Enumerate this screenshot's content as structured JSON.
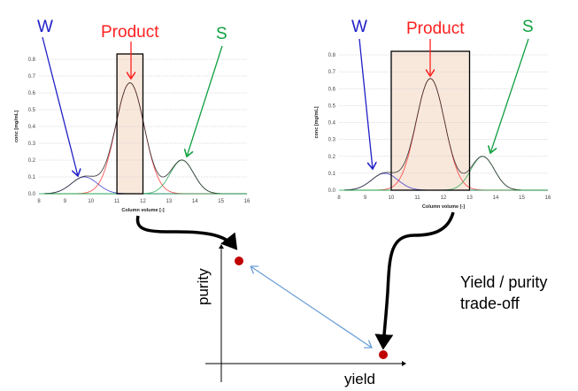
{
  "colors": {
    "W": "#2020c8",
    "Product": "#ff2020",
    "S": "#10a040",
    "total": "#333333",
    "window_fill": "#f8e8dc",
    "dot": "#c00000",
    "tradeoff_arrow": "#6a9fd8"
  },
  "labels": {
    "W": "W",
    "Product": "Product",
    "S": "S"
  },
  "chart_data": [
    {
      "type": "line",
      "xlabel": "Column volume [-]",
      "ylabel": "conc [mg/mL]",
      "xlim": [
        8,
        16
      ],
      "ylim": [
        0,
        0.8
      ],
      "xticks": [
        "8",
        "9",
        "10",
        "11",
        "12",
        "13",
        "14",
        "15",
        "16"
      ],
      "yticks": [
        "0.0",
        "0.1",
        "0.2",
        "0.3",
        "0.4",
        "0.5",
        "0.6",
        "0.7",
        "0.8"
      ],
      "grid": true,
      "peaks": [
        {
          "name": "W",
          "center": 9.75,
          "height": 0.1,
          "sd": 0.5
        },
        {
          "name": "Product",
          "center": 11.5,
          "height": 0.66,
          "sd": 0.55
        },
        {
          "name": "S",
          "center": 13.5,
          "height": 0.2,
          "sd": 0.45
        }
      ],
      "collection_window": [
        11,
        12
      ]
    },
    {
      "type": "line",
      "xlabel": "Column volume [-]",
      "ylabel": "conc [mg/mL]",
      "xlim": [
        8,
        16
      ],
      "ylim": [
        0,
        0.8
      ],
      "xticks": [
        "8",
        "9",
        "10",
        "11",
        "12",
        "13",
        "14",
        "15",
        "16"
      ],
      "yticks": [
        "0.0",
        "0.1",
        "0.2",
        "0.3",
        "0.4",
        "0.5",
        "0.6",
        "0.7",
        "0.8"
      ],
      "grid": true,
      "peaks": [
        {
          "name": "W",
          "center": 9.75,
          "height": 0.1,
          "sd": 0.5
        },
        {
          "name": "Product",
          "center": 11.5,
          "height": 0.66,
          "sd": 0.55
        },
        {
          "name": "S",
          "center": 13.5,
          "height": 0.2,
          "sd": 0.45
        }
      ],
      "collection_window": [
        10,
        13
      ]
    }
  ],
  "tradeoff": {
    "ylabel": "purity",
    "xlabel": "yield",
    "caption_line1": "Yield / purity",
    "caption_line2": "trade-off"
  }
}
